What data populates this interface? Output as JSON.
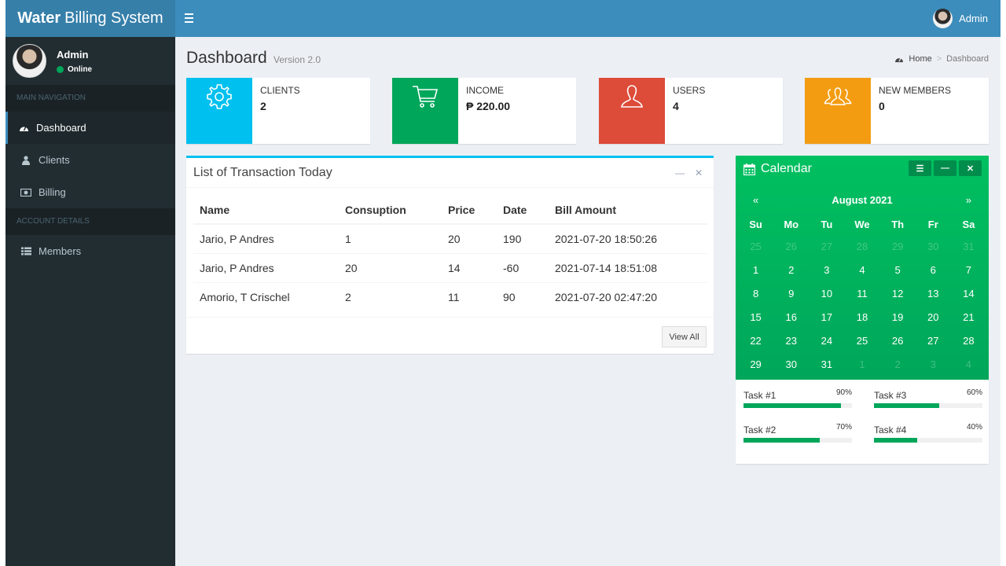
{
  "app": {
    "brand_bold": "Water",
    "brand_rest": "Billing System"
  },
  "topbar": {
    "user": "Admin"
  },
  "sidebar": {
    "user_name": "Admin",
    "user_status": "Online",
    "main_header": "MAIN NAVIGATION",
    "items": [
      {
        "label": "Dashboard",
        "icon": "dashboard-icon",
        "active": true
      },
      {
        "label": "Clients",
        "icon": "user-icon"
      },
      {
        "label": "Billing",
        "icon": "money-icon"
      }
    ],
    "account_header": "ACCOUNT DETAILS",
    "account_items": [
      {
        "label": "Members",
        "icon": "list-icon"
      }
    ]
  },
  "page": {
    "title": "Dashboard",
    "subtitle": "Version 2.0"
  },
  "breadcrumb": {
    "home": "Home",
    "current": "Dashboard"
  },
  "stats": [
    {
      "label": "CLIENTS",
      "value": "2",
      "color": "#00c0ef",
      "icon": "gear-icon"
    },
    {
      "label": "INCOME",
      "value": "₱ 220.00",
      "color": "#00a65a",
      "icon": "cart-icon"
    },
    {
      "label": "USERS",
      "value": "4",
      "color": "#dd4b39",
      "icon": "user-icon"
    },
    {
      "label": "NEW MEMBERS",
      "value": "0",
      "color": "#f39c12",
      "icon": "group-icon"
    }
  ],
  "transactions": {
    "title": "List of Transaction Today",
    "columns": [
      "Name",
      "Consuption",
      "Price",
      "Date",
      "Bill Amount"
    ],
    "rows": [
      [
        "Jario, P Andres",
        "1",
        "20",
        "190",
        "2021-07-20 18:50:26"
      ],
      [
        "Jario, P Andres",
        "20",
        "14",
        "-60",
        "2021-07-14 18:51:08"
      ],
      [
        "Amorio, T Crischel",
        "2",
        "11",
        "90",
        "2021-07-20 02:47:20"
      ]
    ],
    "view_all": "View All"
  },
  "calendar": {
    "title": "Calendar",
    "prev": "«",
    "next": "»",
    "month": "August 2021",
    "weekdays": [
      "Su",
      "Mo",
      "Tu",
      "We",
      "Th",
      "Fr",
      "Sa"
    ],
    "days": [
      [
        "25",
        "26",
        "27",
        "28",
        "29",
        "30",
        "31"
      ],
      [
        "1",
        "2",
        "3",
        "4",
        "5",
        "6",
        "7"
      ],
      [
        "8",
        "9",
        "10",
        "11",
        "12",
        "13",
        "14"
      ],
      [
        "15",
        "16",
        "17",
        "18",
        "19",
        "20",
        "21"
      ],
      [
        "22",
        "23",
        "24",
        "25",
        "26",
        "27",
        "28"
      ],
      [
        "29",
        "30",
        "31",
        "1",
        "2",
        "3",
        "4"
      ]
    ],
    "tasks": [
      {
        "label": "Task #1",
        "percent": "90%",
        "value": 90
      },
      {
        "label": "Task #3",
        "percent": "60%",
        "value": 60
      },
      {
        "label": "Task #2",
        "percent": "70%",
        "value": 70
      },
      {
        "label": "Task #4",
        "percent": "40%",
        "value": 40
      }
    ]
  }
}
